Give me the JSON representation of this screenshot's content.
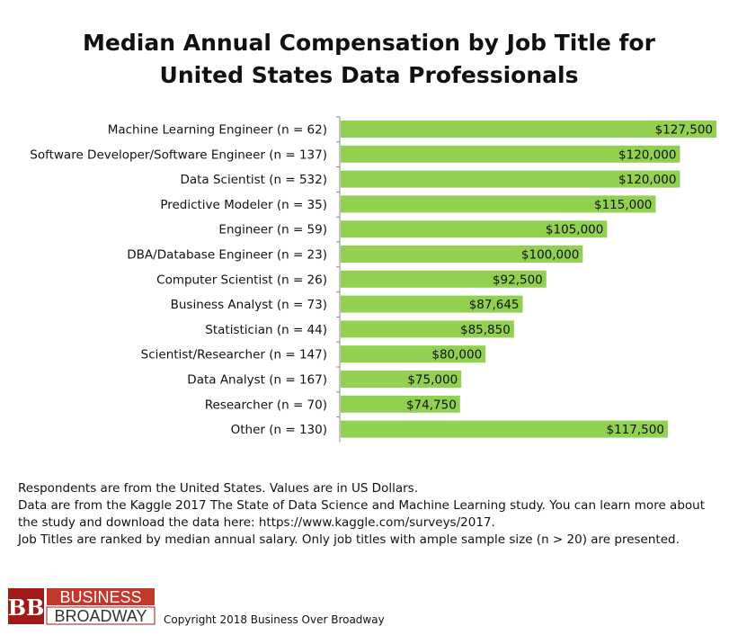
{
  "title_line1": "Median Annual Compensation by Job Title for",
  "title_line2": "United States Data Professionals",
  "chart_data": {
    "type": "bar",
    "orientation": "horizontal",
    "categories": [
      "Machine Learning Engineer (n =  62)",
      "Software Developer/Software Engineer (n =  137)",
      "Data Scientist (n =  532)",
      "Predictive Modeler (n =  35)",
      "Engineer (n =  59)",
      "DBA/Database Engineer (n =  23)",
      "Computer Scientist (n =  26)",
      "Business Analyst (n =  73)",
      "Statistician (n =  44)",
      "Scientist/Researcher (n =  147)",
      "Data Analyst (n =  167)",
      "Researcher (n =  70)",
      "Other (n =  130)"
    ],
    "values": [
      127500,
      120000,
      120000,
      115000,
      105000,
      100000,
      92500,
      87645,
      85850,
      80000,
      75000,
      74750,
      117500
    ],
    "value_labels": [
      "$127,500",
      "$120,000",
      "$120,000",
      "$115,000",
      "$105,000",
      "$100,000",
      "$92,500",
      "$87,645",
      "$85,850",
      "$80,000",
      "$75,000",
      "$74,750",
      "$117,500"
    ],
    "xlim": [
      50000,
      127500
    ],
    "bar_color": "#92d050",
    "grid": false,
    "legend": "none"
  },
  "notes": [
    "Respondents are from the United States. Values are in US Dollars.",
    "Data are from the Kaggle 2017 The State of Data Science and Machine Learning study. You can learn more about the study and download the data here: https://www.kaggle.com/surveys/2017.",
    "Job Titles are ranked by median annual salary. Only job titles with ample sample size (n > 20) are presented."
  ],
  "logo": {
    "letters": "BB",
    "line1": "BUSINESS",
    "line2": "BROADWAY",
    "colors": {
      "dark_red": "#a01a1a",
      "mid_red": "#c0392b"
    }
  },
  "copyright": "Copyright 2018 Business Over Broadway"
}
